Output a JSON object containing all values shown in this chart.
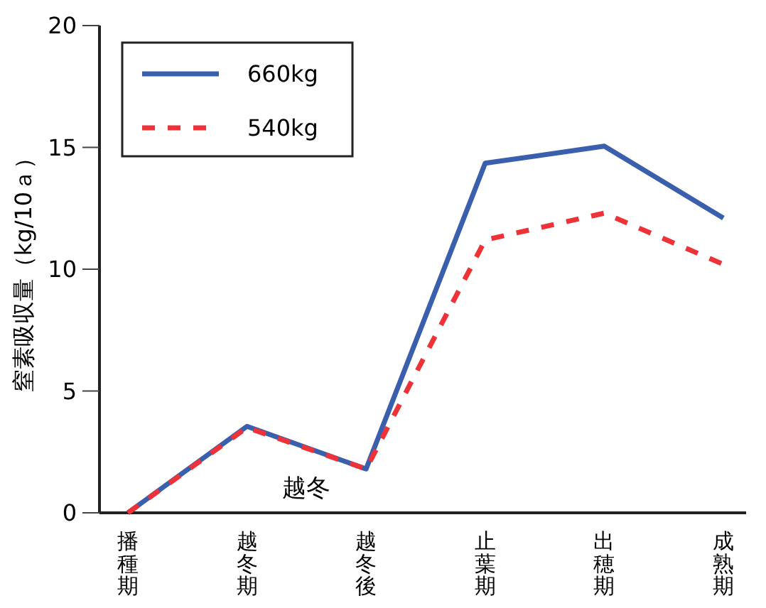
{
  "chart_data": {
    "type": "line",
    "ylabel": "窒素吸収量（kg/10ａ）",
    "categories": [
      "播種期",
      "越冬期",
      "越冬後",
      "止葉期",
      "出穂期",
      "成熟期"
    ],
    "ylim": [
      0,
      20
    ],
    "yticks": [
      0,
      5,
      10,
      15,
      20
    ],
    "series": [
      {
        "name": "660kg",
        "color": "#3a5fad",
        "line_style": "solid",
        "values": [
          0,
          3.55,
          1.8,
          14.35,
          15.05,
          12.1
        ]
      },
      {
        "name": "540kg",
        "color": "#ee3338",
        "line_style": "dashed",
        "values": [
          0,
          3.5,
          1.8,
          11.2,
          12.3,
          10.2
        ]
      }
    ],
    "annotations": [
      "越冬"
    ],
    "legend": "top left",
    "grid": false,
    "marker": "none"
  }
}
